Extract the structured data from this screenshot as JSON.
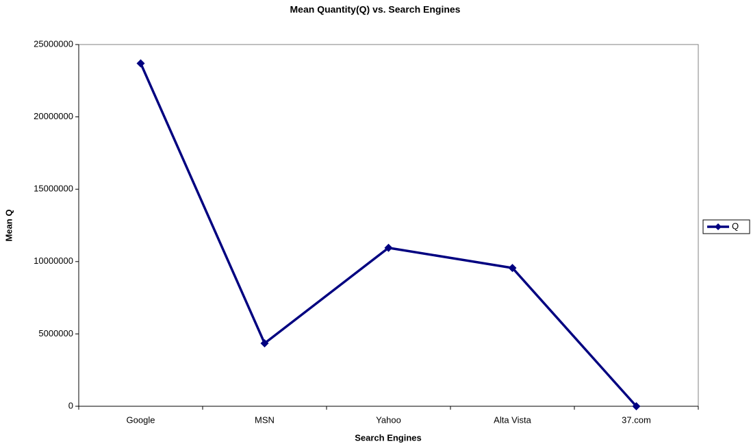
{
  "chart_data": {
    "type": "line",
    "title": "Mean Quantity(Q) vs. Search Engines",
    "x_label": "Search Engines",
    "y_label": "Mean Q",
    "categories": [
      "Google",
      "MSN",
      "Yahoo",
      "Alta Vista",
      "37.com"
    ],
    "series": [
      {
        "name": "Q",
        "color": "#000080",
        "values": [
          23700000,
          4350000,
          10950000,
          9560000,
          0
        ]
      }
    ],
    "ylim": [
      0,
      25000000
    ],
    "yticks": [
      0,
      5000000,
      10000000,
      15000000,
      20000000,
      25000000
    ],
    "grid": false,
    "legend": "right"
  }
}
